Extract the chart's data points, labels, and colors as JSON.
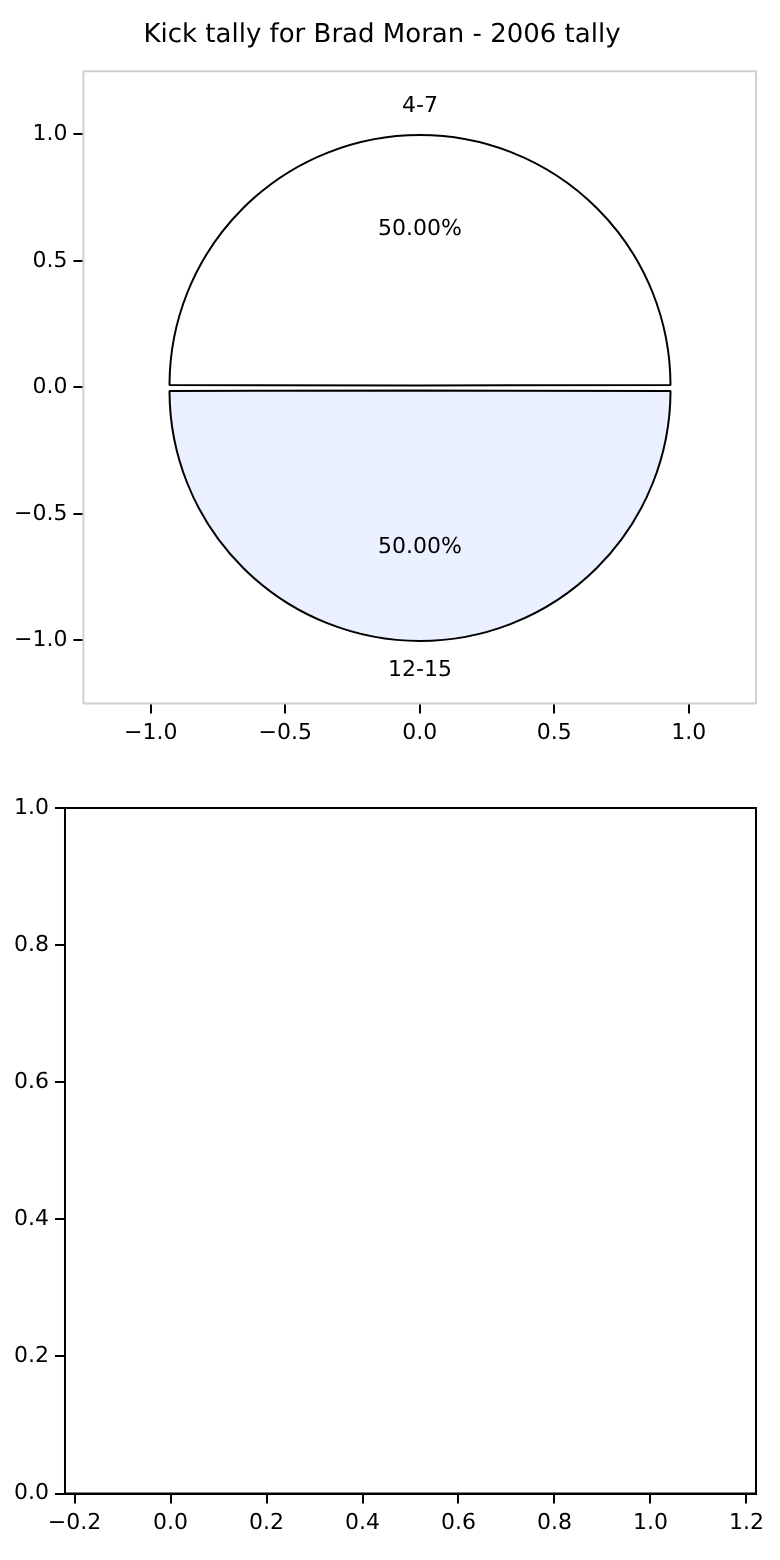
{
  "chart_data": [
    {
      "type": "scatter",
      "title": "Kick tally for Brad Moran - 2006 tally",
      "xlim": [
        -1.25,
        1.25
      ],
      "ylim": [
        -1.25,
        1.25
      ],
      "xticks": [
        {
          "value": -1,
          "label": "−1.0"
        },
        {
          "value": -0.5,
          "label": "−0.5"
        },
        {
          "value": 0,
          "label": "0.0"
        },
        {
          "value": 0.5,
          "label": "0.5"
        },
        {
          "value": 1,
          "label": "1.0"
        }
      ],
      "yticks": [
        {
          "value": -1,
          "label": "−1.0"
        },
        {
          "value": -0.5,
          "label": "−0.5"
        },
        {
          "value": 0,
          "label": "0.0"
        },
        {
          "value": 0.5,
          "label": "0.5"
        },
        {
          "value": 1,
          "label": "1.0"
        }
      ]
    },
    {
      "type": "pie",
      "categories": [
        "4-7",
        "12-15"
      ],
      "values": [
        50,
        50
      ],
      "colors": [
        "#ffffff",
        "#eaf0ff"
      ],
      "value_labels": [
        "50.00%",
        "50.00%"
      ]
    },
    {
      "type": "scatter",
      "xlim": [
        -0.22,
        1.22
      ],
      "ylim": [
        0,
        1
      ],
      "xticks": [
        {
          "value": -0.2,
          "label": "−0.2"
        },
        {
          "value": 0,
          "label": "0.0"
        },
        {
          "value": 0.2,
          "label": "0.2"
        },
        {
          "value": 0.4,
          "label": "0.4"
        },
        {
          "value": 0.6,
          "label": "0.6"
        },
        {
          "value": 0.8,
          "label": "0.8"
        },
        {
          "value": 1,
          "label": "1.0"
        },
        {
          "value": 1.2,
          "label": "1.2"
        }
      ],
      "yticks": [
        {
          "value": 0,
          "label": "0.0"
        },
        {
          "value": 0.2,
          "label": "0.2"
        },
        {
          "value": 0.4,
          "label": "0.4"
        },
        {
          "value": 0.6,
          "label": "0.6"
        },
        {
          "value": 0.8,
          "label": "0.8"
        },
        {
          "value": 1,
          "label": "1.0"
        }
      ]
    }
  ]
}
